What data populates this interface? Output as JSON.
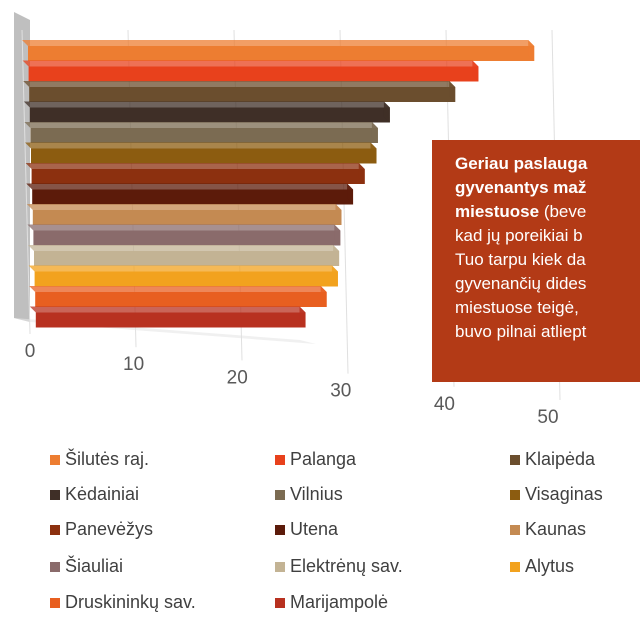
{
  "chart_data": {
    "type": "bar3d_horizontal",
    "categories": [
      "Šilutės raj.",
      "Palanga",
      "Klaipėda",
      "Kėdainiai",
      "Vilnius",
      "Visaginas",
      "Panevėžys",
      "Utena",
      "Kaunas",
      "Šiauliai",
      "Elektrėnų sav.",
      "Alytus",
      "Druskininkų sav.",
      "Marijampolė"
    ],
    "series": [
      {
        "name": "",
        "values": [
          47,
          42,
          40,
          34,
          33,
          33,
          32,
          31,
          30,
          30,
          30,
          30,
          29,
          27
        ]
      }
    ],
    "colors": [
      "#ed7d31",
      "#e8411c",
      "#6b4e2e",
      "#3f2f27",
      "#7b6b52",
      "#8c5c10",
      "#8c300f",
      "#5c1b0a",
      "#c48a52",
      "#8a6b6b",
      "#c3b394",
      "#f2a21e",
      "#e85f20",
      "#b83120"
    ],
    "xlim": [
      0,
      50
    ],
    "xticks": [
      0,
      10,
      20,
      30,
      40,
      50
    ],
    "grid": true,
    "annotation": {
      "lines": [
        {
          "bold": "Geriau paslauga"
        },
        {
          "bold": "gyvenantys maž"
        },
        {
          "bold": "miestuose",
          "rest": " (beve"
        },
        {
          "rest": "kad jų poreikiai b"
        },
        {
          "rest": "Tuo tarpu kiek da"
        },
        {
          "rest": "gyvenančių dides"
        },
        {
          "rest": "miestuose teigė, "
        },
        {
          "rest": "buvo pilnai atliept"
        }
      ]
    }
  }
}
